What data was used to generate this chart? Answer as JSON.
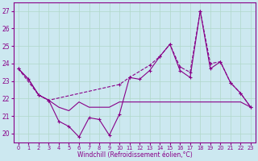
{
  "xlabel": "Windchill (Refroidissement éolien,°C)",
  "bg_color": "#cce8f0",
  "grid_color": "#b0d8c8",
  "line_color": "#880088",
  "xlim": [
    -0.5,
    23.5
  ],
  "ylim": [
    19.5,
    27.5
  ],
  "yticks": [
    20,
    21,
    22,
    23,
    24,
    25,
    26,
    27
  ],
  "xticks": [
    0,
    1,
    2,
    3,
    4,
    5,
    6,
    7,
    8,
    9,
    10,
    11,
    12,
    13,
    14,
    15,
    16,
    17,
    18,
    19,
    20,
    21,
    22,
    23
  ],
  "series1_x": [
    0,
    1,
    2,
    3,
    4,
    5,
    6,
    7,
    8,
    9,
    10,
    11,
    12,
    13,
    14,
    15,
    16,
    17,
    18,
    19,
    20,
    21,
    22,
    23
  ],
  "series1_y": [
    23.7,
    23.1,
    22.2,
    21.9,
    20.7,
    20.4,
    19.8,
    20.9,
    20.8,
    19.9,
    21.1,
    23.2,
    23.1,
    23.6,
    24.4,
    25.1,
    23.6,
    23.2,
    27.0,
    23.7,
    24.1,
    22.9,
    22.3,
    21.5
  ],
  "series2_x": [
    0,
    2,
    3,
    10,
    11,
    13,
    14,
    15,
    16,
    17,
    18,
    19,
    20,
    21,
    22,
    23
  ],
  "series2_y": [
    23.7,
    22.2,
    21.9,
    22.8,
    23.2,
    23.9,
    24.4,
    25.1,
    23.8,
    23.5,
    27.0,
    24.0,
    24.1,
    22.9,
    22.3,
    21.5
  ],
  "series3_x": [
    0,
    1,
    2,
    3,
    4,
    5,
    6,
    7,
    8,
    9,
    10,
    11,
    12,
    13,
    14,
    15,
    16,
    17,
    18,
    19,
    20,
    21,
    22,
    23
  ],
  "series3_y": [
    23.7,
    23.1,
    22.2,
    21.9,
    21.5,
    21.3,
    21.8,
    21.5,
    21.5,
    21.5,
    21.8,
    21.8,
    21.8,
    21.8,
    21.8,
    21.8,
    21.8,
    21.8,
    21.8,
    21.8,
    21.8,
    21.8,
    21.8,
    21.5
  ]
}
